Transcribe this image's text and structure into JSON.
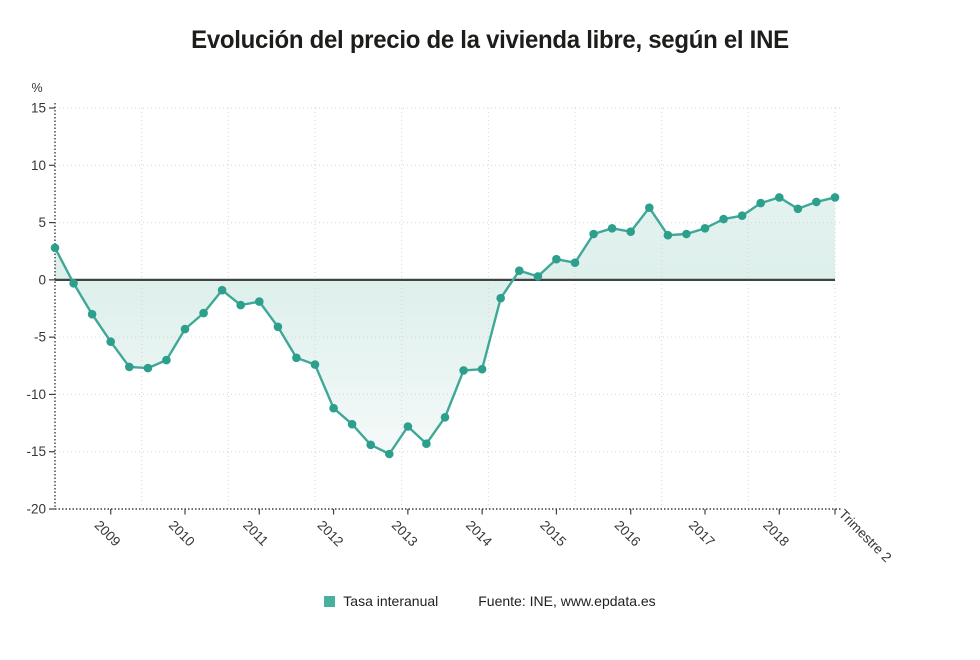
{
  "title": "Evolución del precio de la vivienda libre, según el INE",
  "legend": {
    "series_label": "Tasa interanual",
    "source": "Fuente: INE, www.epdata.es"
  },
  "colors": {
    "line": "#3fa897",
    "marker": "#2d9f8d",
    "fill_base": "#3aa28f",
    "legend_swatch": "#45b19e",
    "zero_line": "#3e4442",
    "grid": "#d6d6d6",
    "axis": "#3f3f3f",
    "tick_text": "#363636",
    "title_text": "#1d1d1b"
  },
  "chart_data": {
    "type": "line",
    "title": "Evolución del precio de la vivienda libre, según el INE",
    "series_name": "Tasa interanual",
    "frequency": "quarterly",
    "start": "2008-Q1",
    "end": "2018-Q3",
    "values": [
      2.8,
      -0.3,
      -3.0,
      -5.4,
      -7.6,
      -7.7,
      -7.0,
      -4.3,
      -2.9,
      -0.9,
      -2.2,
      -1.9,
      -4.1,
      -6.8,
      -7.4,
      -11.2,
      -12.6,
      -14.4,
      -15.2,
      -12.8,
      -14.3,
      -12.0,
      -7.9,
      -7.8,
      -1.6,
      0.8,
      0.3,
      1.8,
      1.5,
      4.0,
      4.5,
      4.2,
      6.3,
      3.9,
      4.0,
      4.5,
      5.3,
      5.6,
      6.7,
      7.2,
      6.2,
      6.8,
      7.2
    ],
    "ylabel": "%",
    "ylim": [
      -20,
      15
    ],
    "y_ticks": [
      15,
      10,
      5,
      0,
      -5,
      -10,
      -15,
      -20
    ],
    "x_tick_labels": [
      "2009",
      "2010",
      "2011",
      "2012",
      "2013",
      "2014",
      "2015",
      "2016",
      "2017",
      "2018"
    ],
    "x_tick_point_indices": [
      3,
      7,
      11,
      15,
      19,
      23,
      27,
      31,
      35,
      39
    ],
    "x_axis_end_label": "Trimestre 2",
    "x_grid_divisions": 9,
    "grid": true,
    "legend_position": "bottom"
  }
}
